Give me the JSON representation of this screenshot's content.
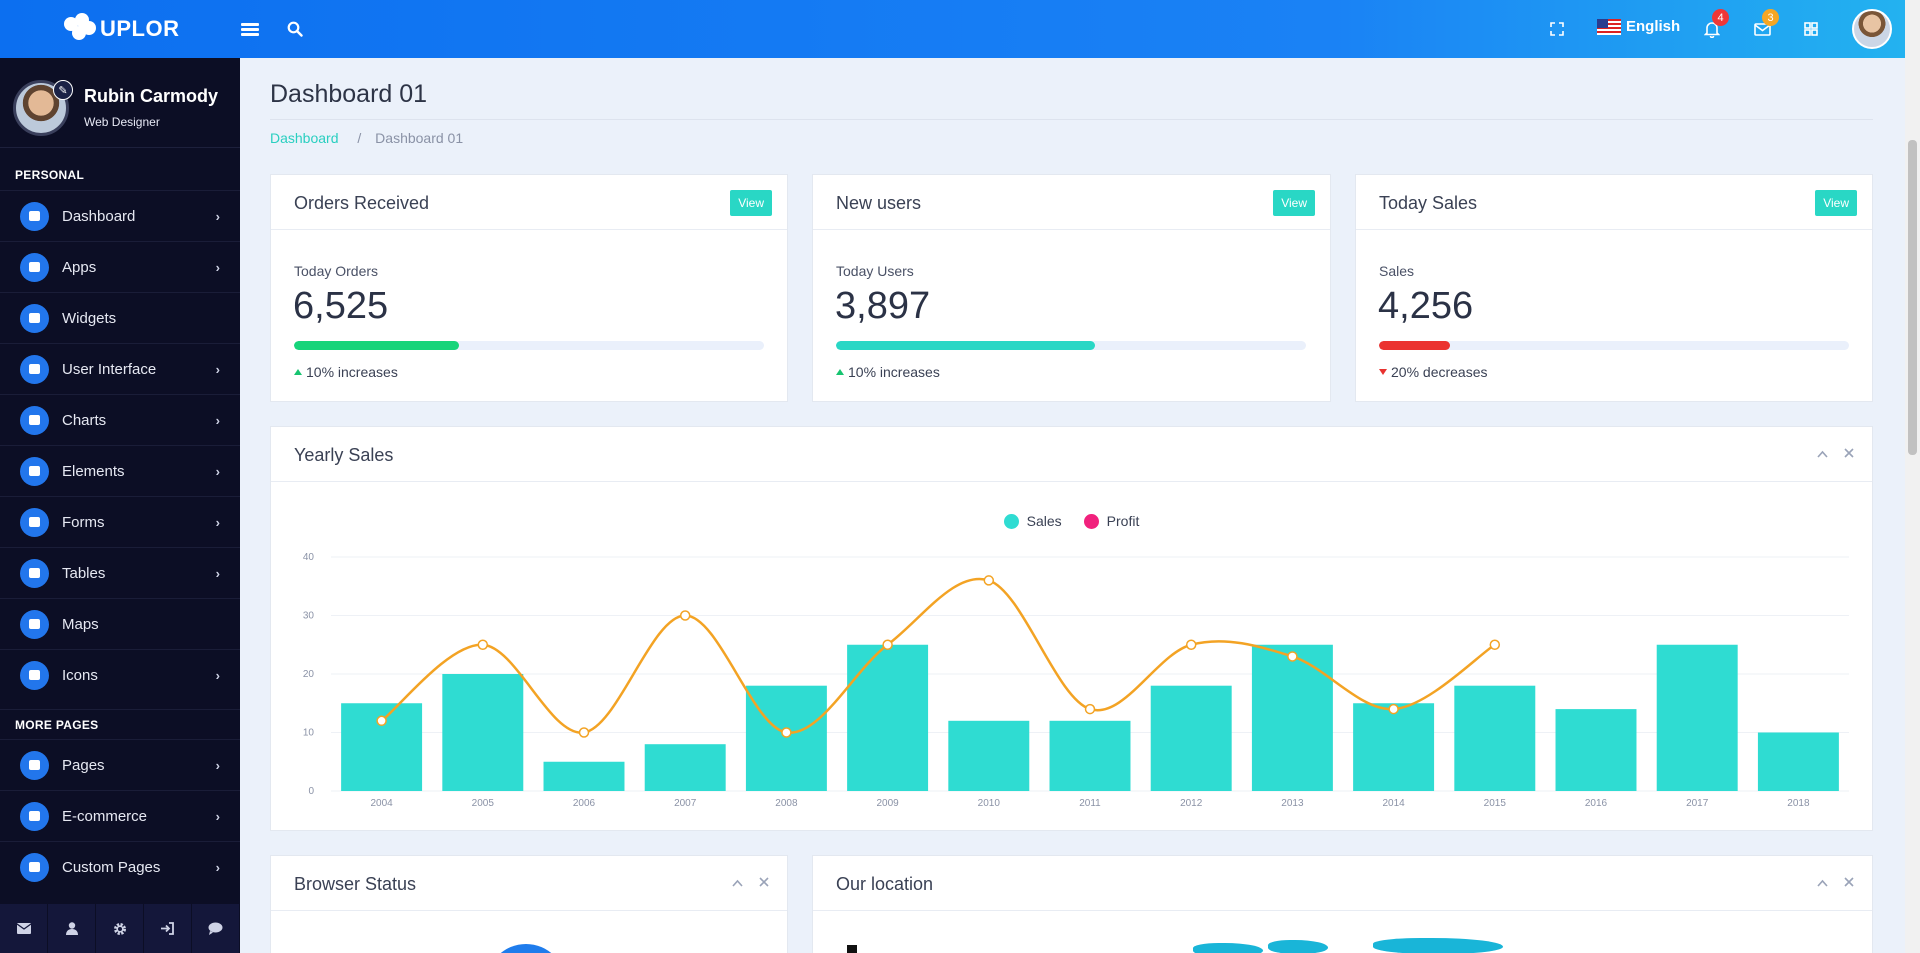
{
  "header": {
    "brand": "UPLOR",
    "language": "English",
    "notifications_count": "4",
    "messages_count": "3"
  },
  "sidebar": {
    "profile": {
      "name": "Rubin Carmody",
      "role": "Web Designer"
    },
    "sections": [
      {
        "heading": "PERSONAL",
        "items": [
          {
            "label": "Dashboard",
            "icon": "monitor-icon",
            "has_children": true
          },
          {
            "label": "Apps",
            "icon": "rocket-icon",
            "has_children": true
          },
          {
            "label": "Widgets",
            "icon": "diamond-icon",
            "has_children": false
          },
          {
            "label": "User Interface",
            "icon": "cubes-icon",
            "has_children": true
          },
          {
            "label": "Charts",
            "icon": "area-chart-icon",
            "has_children": true
          },
          {
            "label": "Elements",
            "icon": "edit-icon",
            "has_children": true
          },
          {
            "label": "Forms",
            "icon": "file-icon",
            "has_children": true
          },
          {
            "label": "Tables",
            "icon": "table-icon",
            "has_children": true
          },
          {
            "label": "Maps",
            "icon": "map-icon",
            "has_children": false
          },
          {
            "label": "Icons",
            "icon": "gear-icon",
            "has_children": true
          }
        ]
      },
      {
        "heading": "MORE PAGES",
        "items": [
          {
            "label": "Pages",
            "icon": "soccer-ball-icon",
            "has_children": true
          },
          {
            "label": "E-commerce",
            "icon": "cart-icon",
            "has_children": true
          },
          {
            "label": "Custom Pages",
            "icon": "briefcase-icon",
            "has_children": true
          }
        ]
      }
    ],
    "footer_icons": [
      "envelope-icon",
      "user-icon",
      "gear-icon",
      "sign-in-icon",
      "comment-icon"
    ]
  },
  "page": {
    "title": "Dashboard 01",
    "breadcrumb": [
      "Dashboard",
      "Dashboard 01"
    ]
  },
  "stats": [
    {
      "title": "Orders Received",
      "button": "View",
      "label": "Today Orders",
      "value": "6,525",
      "progress": 0.35,
      "bar_color": "#16d47a",
      "trend": "10% increases",
      "direction": "up"
    },
    {
      "title": "New users",
      "button": "View",
      "label": "Today Users",
      "value": "3,897",
      "progress": 0.55,
      "bar_color": "#29d7c5",
      "trend": "10% increases",
      "direction": "up"
    },
    {
      "title": "Today Sales",
      "button": "View",
      "label": "Sales",
      "value": "4,256",
      "progress": 0.15,
      "bar_color": "#eb3330",
      "trend": "20% decreases",
      "direction": "down"
    }
  ],
  "yearly_sales": {
    "title": "Yearly Sales",
    "legend": [
      {
        "name": "Sales",
        "color": "#2fdcd2"
      },
      {
        "name": "Profit",
        "color": "#f1217d"
      }
    ]
  },
  "bottom_cards": [
    {
      "title": "Browser Status"
    },
    {
      "title": "Our location"
    }
  ],
  "chart_data": {
    "type": "bar",
    "categories": [
      "2004",
      "2005",
      "2006",
      "2007",
      "2008",
      "2009",
      "2010",
      "2011",
      "2012",
      "2013",
      "2014",
      "2015",
      "2016",
      "2017",
      "2018"
    ],
    "ylim": [
      0,
      40
    ],
    "yticks": [
      0,
      10,
      20,
      30,
      40
    ],
    "series": [
      {
        "name": "Sales",
        "type": "bar",
        "color": "#2fdcd2",
        "values": [
          15,
          20,
          5,
          8,
          18,
          25,
          12,
          12,
          18,
          25,
          15,
          18,
          14,
          25,
          10
        ]
      },
      {
        "type": "line",
        "color": "#f3a324",
        "values": [
          12,
          25,
          10,
          30,
          10,
          25,
          36,
          14,
          25,
          23,
          14,
          25,
          null,
          null,
          null
        ]
      }
    ],
    "grid": true
  }
}
